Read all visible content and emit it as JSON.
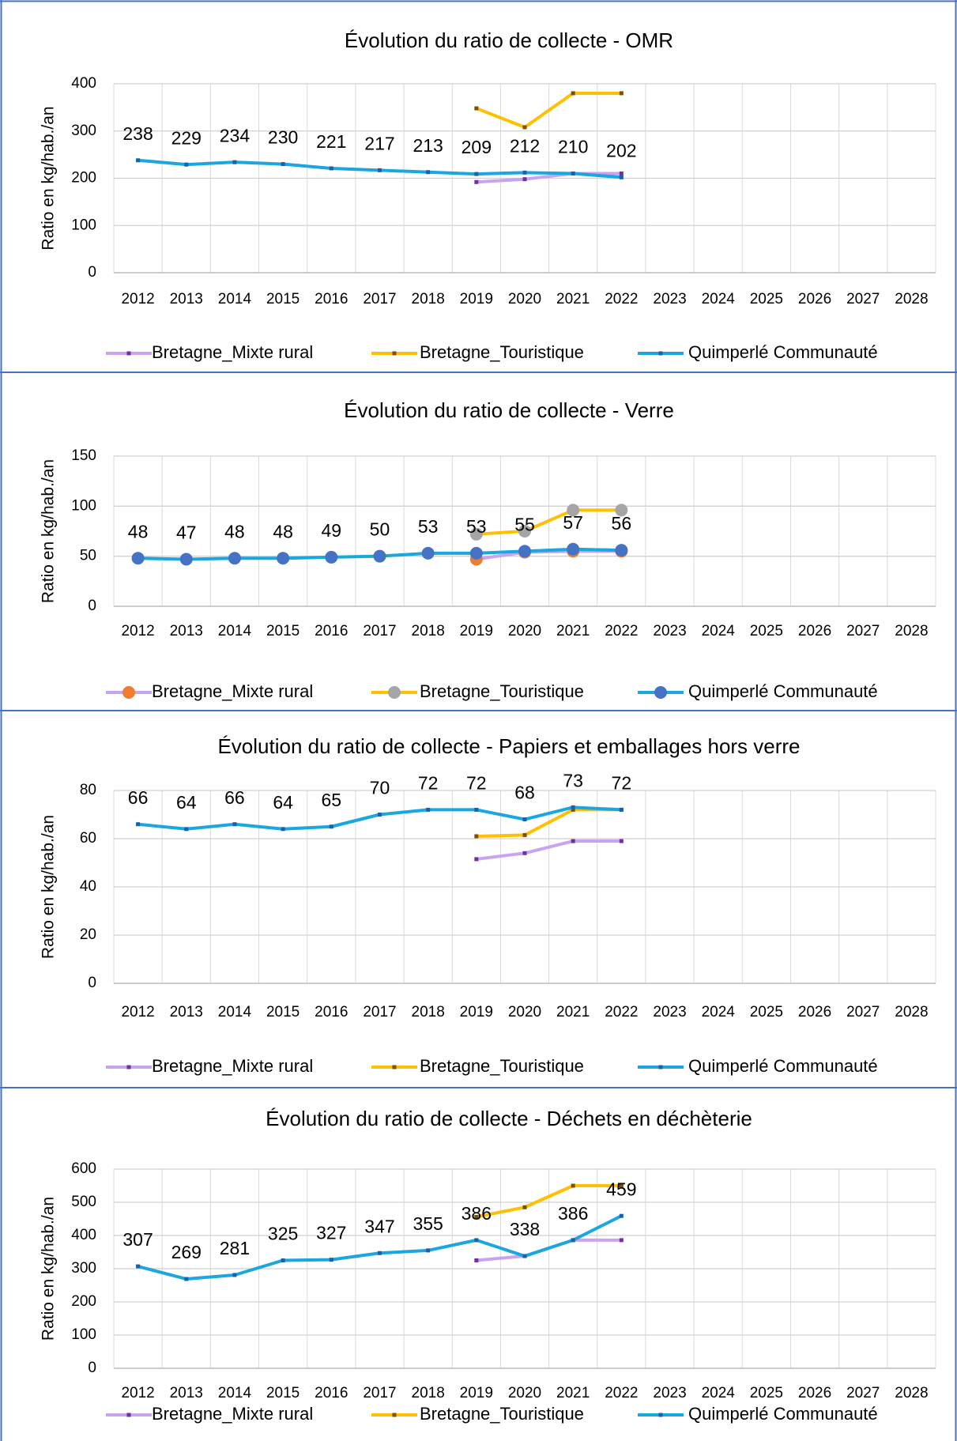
{
  "chart_data": [
    {
      "type": "line",
      "title": "Évolution du ratio de collecte - OMR",
      "y_label": "Ratio en kg/hab./an",
      "categories": [
        "2012",
        "2013",
        "2014",
        "2015",
        "2016",
        "2017",
        "2018",
        "2019",
        "2020",
        "2021",
        "2022",
        "2023",
        "2024",
        "2025",
        "2026",
        "2027",
        "2028"
      ],
      "ylim": [
        0,
        400
      ],
      "yticks": [
        0,
        100,
        200,
        300,
        400
      ],
      "grid": true,
      "legend": "bottom",
      "data_labels_series": 2,
      "series": [
        {
          "name": "Bretagne_Mixte rural",
          "color": "#c9a3f2",
          "marker": "small",
          "marker_color": "#7030a0",
          "values": [
            null,
            null,
            null,
            null,
            null,
            null,
            null,
            192,
            198,
            210,
            210,
            null,
            null,
            null,
            null,
            null,
            null
          ]
        },
        {
          "name": "Bretagne_Touristique",
          "color": "#ffc000",
          "marker": "small",
          "marker_color": "#7f4f00",
          "values": [
            null,
            null,
            null,
            null,
            null,
            null,
            null,
            348,
            308,
            380,
            380,
            null,
            null,
            null,
            null,
            null,
            null
          ]
        },
        {
          "name": "Quimperlé Communauté",
          "color": "#1aa7e0",
          "marker": "small",
          "marker_color": "#1f5fa8",
          "values": [
            238,
            229,
            234,
            230,
            221,
            217,
            213,
            209,
            212,
            210,
            202,
            null,
            null,
            null,
            null,
            null,
            null
          ]
        }
      ]
    },
    {
      "type": "line",
      "title": "Évolution du ratio de collecte - Verre",
      "y_label": "Ratio en kg/hab./an",
      "categories": [
        "2012",
        "2013",
        "2014",
        "2015",
        "2016",
        "2017",
        "2018",
        "2019",
        "2020",
        "2021",
        "2022",
        "2023",
        "2024",
        "2025",
        "2026",
        "2027",
        "2028"
      ],
      "ylim": [
        0,
        150
      ],
      "yticks": [
        0,
        50,
        100,
        150
      ],
      "grid": true,
      "legend": "bottom",
      "data_labels_series": 2,
      "series": [
        {
          "name": "Bretagne_Mixte rural",
          "color": "#c9a3f2",
          "marker": "circle",
          "marker_color": "#ed7d31",
          "values": [
            null,
            null,
            null,
            null,
            null,
            null,
            null,
            47,
            54,
            55,
            55,
            null,
            null,
            null,
            null,
            null,
            null
          ]
        },
        {
          "name": "Bretagne_Touristique",
          "color": "#ffc000",
          "marker": "circle",
          "marker_color": "#a5a5a5",
          "values": [
            null,
            null,
            null,
            null,
            null,
            null,
            null,
            72,
            75,
            96,
            96,
            null,
            null,
            null,
            null,
            null,
            null
          ]
        },
        {
          "name": "Quimperlé Communauté",
          "color": "#1aa7e0",
          "marker": "circle",
          "marker_color": "#4472c4",
          "values": [
            48,
            47,
            48,
            48,
            49,
            50,
            53,
            53,
            55,
            57,
            56,
            null,
            null,
            null,
            null,
            null,
            null
          ]
        }
      ]
    },
    {
      "type": "line",
      "title": "Évolution du ratio de collecte - Papiers et emballages hors verre",
      "y_label": "Ratio en kg/hab./an",
      "categories": [
        "2012",
        "2013",
        "2014",
        "2015",
        "2016",
        "2017",
        "2018",
        "2019",
        "2020",
        "2021",
        "2022",
        "2023",
        "2024",
        "2025",
        "2026",
        "2027",
        "2028"
      ],
      "ylim": [
        0,
        80
      ],
      "yticks": [
        0,
        20,
        40,
        60,
        80
      ],
      "grid": true,
      "legend": "bottom",
      "data_labels_series": 2,
      "series": [
        {
          "name": "Bretagne_Mixte rural",
          "color": "#c9a3f2",
          "marker": "small",
          "marker_color": "#7030a0",
          "values": [
            null,
            null,
            null,
            null,
            null,
            null,
            null,
            51.5,
            54,
            59,
            59,
            null,
            null,
            null,
            null,
            null,
            null
          ]
        },
        {
          "name": "Bretagne_Touristique",
          "color": "#ffc000",
          "marker": "small",
          "marker_color": "#7f4f00",
          "values": [
            null,
            null,
            null,
            null,
            null,
            null,
            null,
            61,
            61.5,
            72,
            72,
            null,
            null,
            null,
            null,
            null,
            null
          ]
        },
        {
          "name": "Quimperlé Communauté",
          "color": "#1aa7e0",
          "marker": "small",
          "marker_color": "#1f5fa8",
          "values": [
            66,
            64,
            66,
            64,
            65,
            70,
            72,
            72,
            68,
            73,
            72,
            null,
            null,
            null,
            null,
            null,
            null
          ]
        }
      ]
    },
    {
      "type": "line",
      "title": "Évolution du ratio de collecte - Déchets en déchèterie",
      "y_label": "Ratio en kg/hab./an",
      "categories": [
        "2012",
        "2013",
        "2014",
        "2015",
        "2016",
        "2017",
        "2018",
        "2019",
        "2020",
        "2021",
        "2022",
        "2023",
        "2024",
        "2025",
        "2026",
        "2027",
        "2028"
      ],
      "ylim": [
        0,
        600
      ],
      "yticks": [
        0,
        100,
        200,
        300,
        400,
        500,
        600
      ],
      "grid": true,
      "legend": "bottom",
      "data_labels_series": 2,
      "series": [
        {
          "name": "Bretagne_Mixte rural",
          "color": "#c9a3f2",
          "marker": "small",
          "marker_color": "#7030a0",
          "values": [
            null,
            null,
            null,
            null,
            null,
            null,
            null,
            325,
            338,
            386,
            386,
            null,
            null,
            null,
            null,
            null,
            null
          ]
        },
        {
          "name": "Bretagne_Touristique",
          "color": "#ffc000",
          "marker": "small",
          "marker_color": "#7f4f00",
          "values": [
            null,
            null,
            null,
            null,
            null,
            null,
            null,
            456,
            485,
            550,
            550,
            null,
            null,
            null,
            null,
            null,
            null
          ]
        },
        {
          "name": "Quimperlé Communauté",
          "color": "#1aa7e0",
          "marker": "small",
          "marker_color": "#1f5fa8",
          "values": [
            307,
            269,
            281,
            325,
            327,
            347,
            355,
            386,
            338,
            386,
            459,
            null,
            null,
            null,
            null,
            null,
            null
          ]
        }
      ]
    }
  ]
}
